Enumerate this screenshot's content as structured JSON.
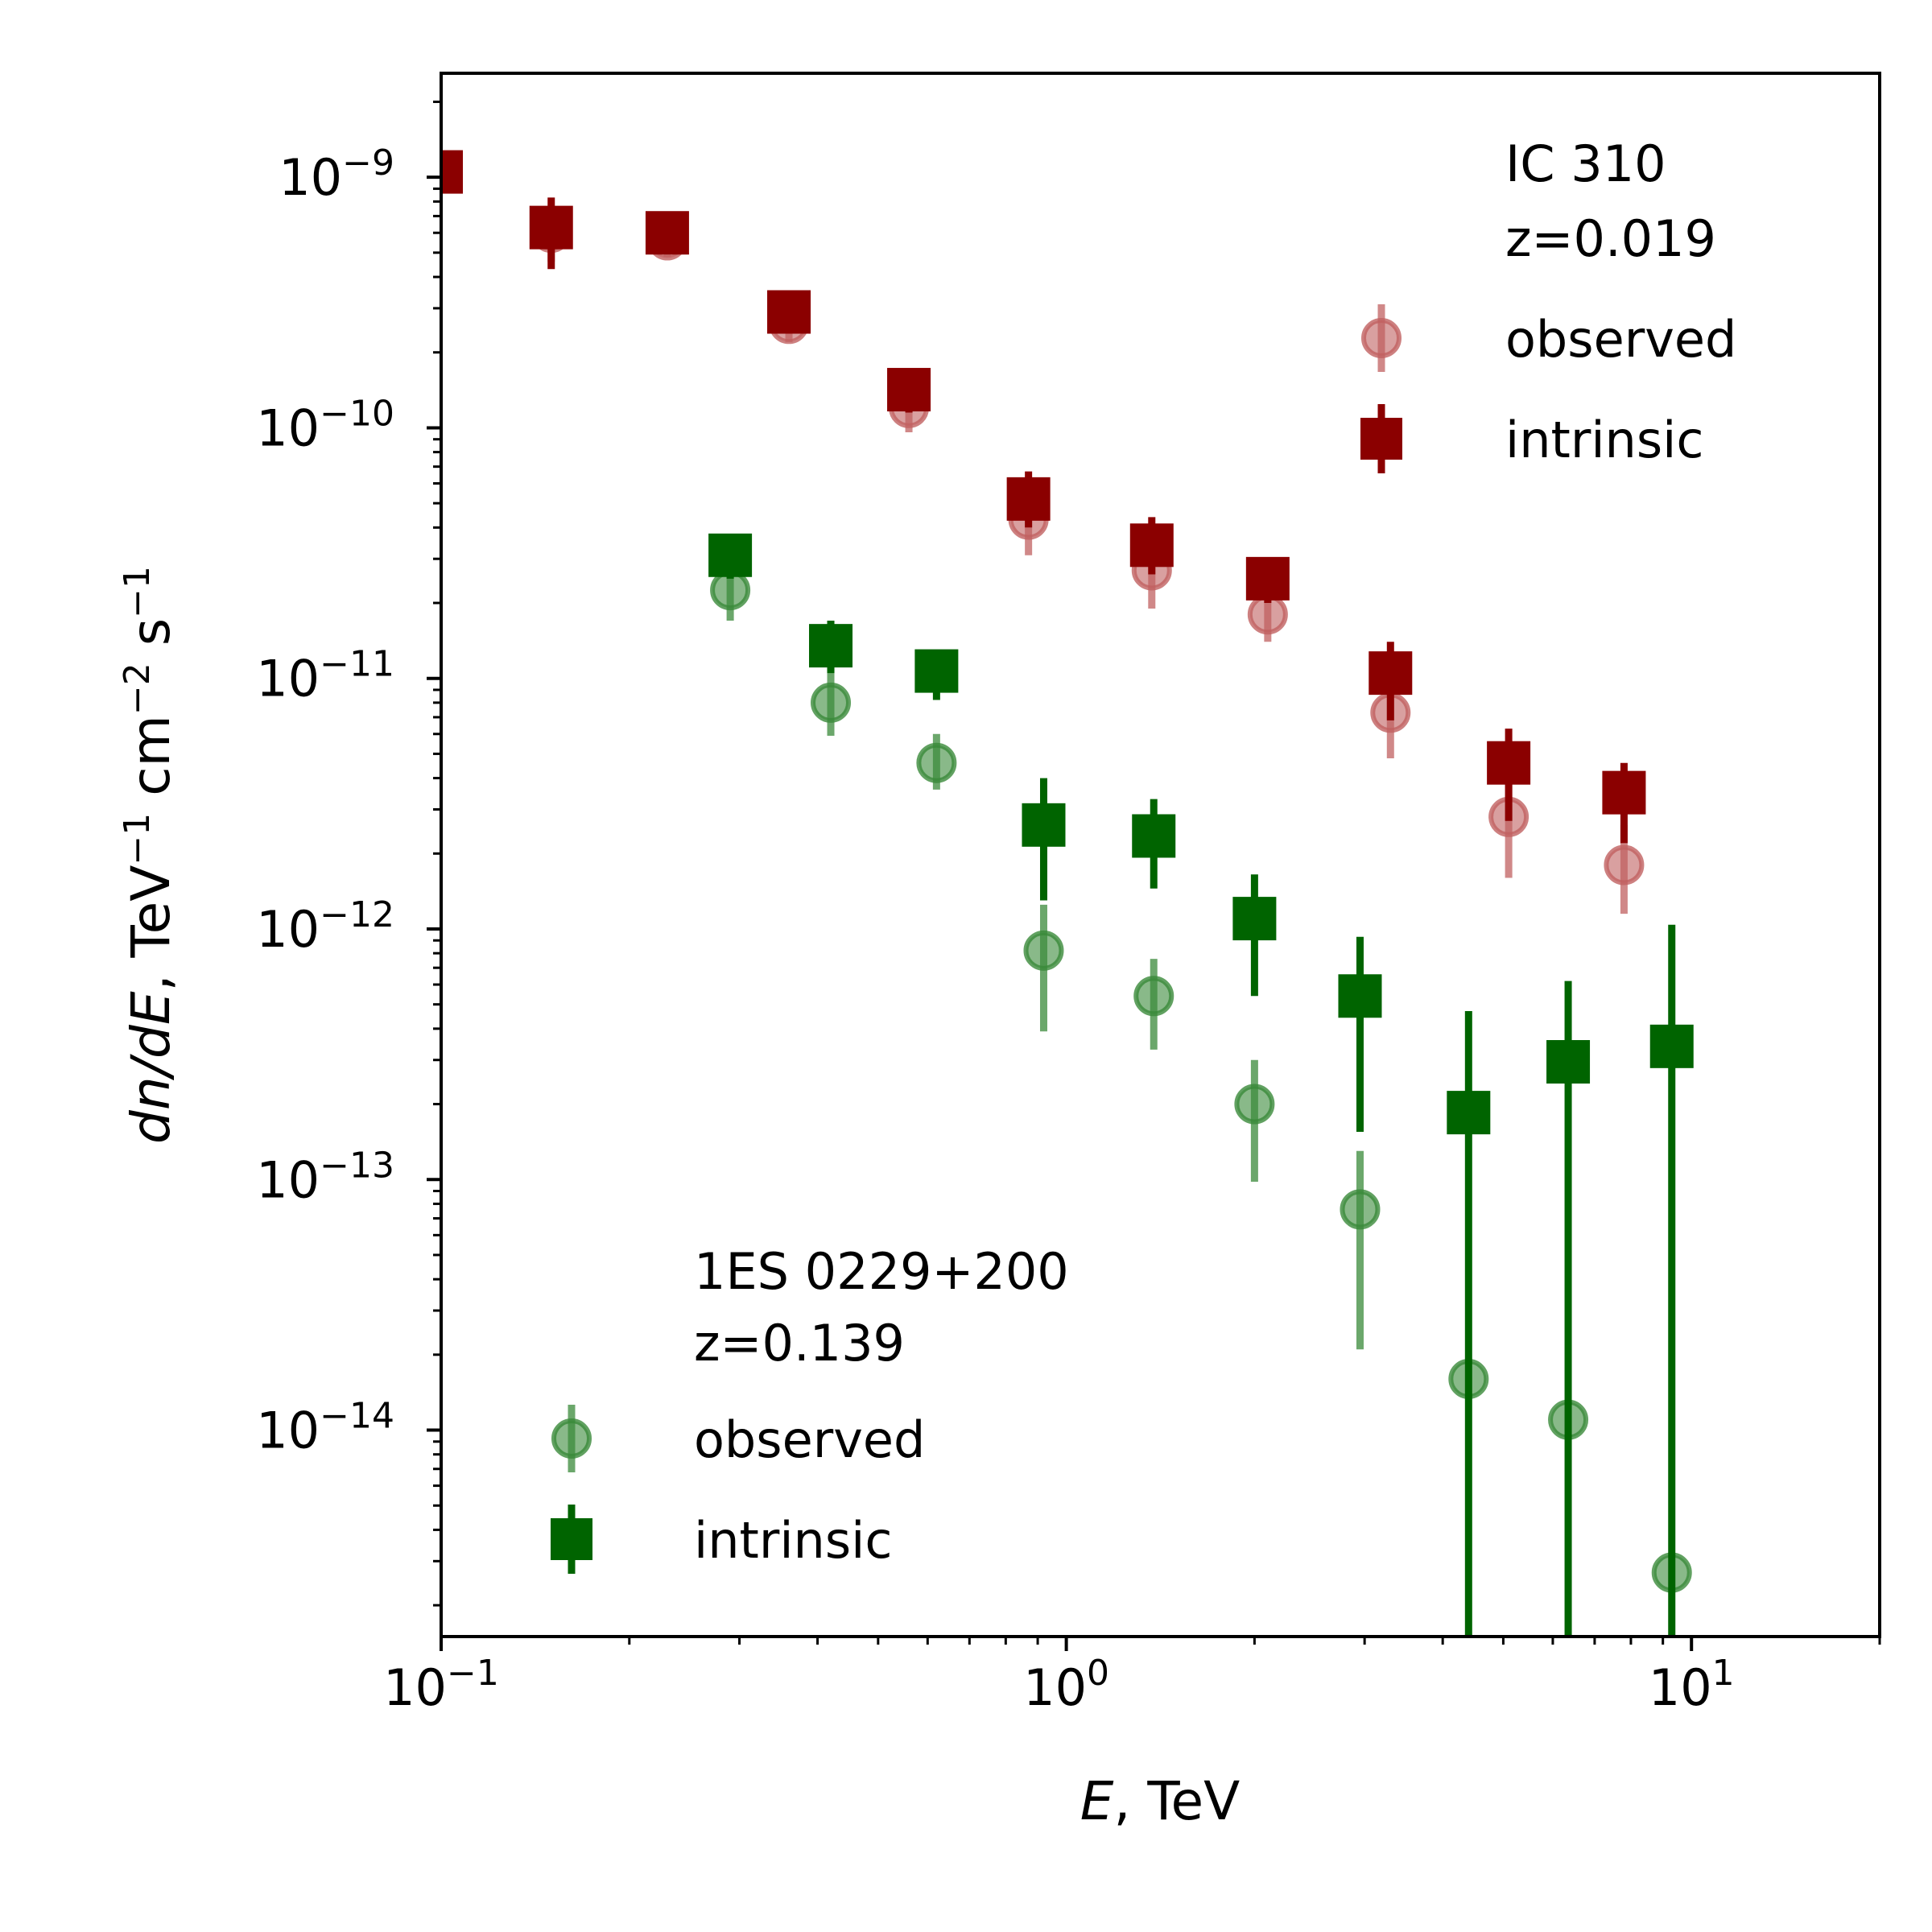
{
  "chart_data": {
    "type": "scatter",
    "xlabel": "E, TeV",
    "xlabel_parts": {
      "var": "E",
      "rest": ", TeV"
    },
    "ylabel_parts": {
      "var": "dn/dE",
      "rest": ", TeV",
      "exp1": "−1",
      "mid": " cm",
      "exp2": "−2",
      "tail": " s",
      "exp3": "−1"
    },
    "xscale": "log",
    "yscale": "log",
    "xlim": [
      0.1,
      20
    ],
    "ylim": [
      1.5e-15,
      2.6e-09
    ],
    "x_ticks": [
      {
        "base": "10",
        "exp": "−1"
      },
      {
        "base": "10",
        "exp": "0"
      },
      {
        "base": "10",
        "exp": "1"
      }
    ],
    "y_ticks": [
      {
        "base": "10",
        "exp": "−9"
      },
      {
        "base": "10",
        "exp": "−10"
      },
      {
        "base": "10",
        "exp": "−11"
      },
      {
        "base": "10",
        "exp": "−12"
      },
      {
        "base": "10",
        "exp": "−13"
      },
      {
        "base": "10",
        "exp": "−14"
      }
    ],
    "colors": {
      "ic_observed": "#c06060",
      "ic_intrinsic": "#8b0000",
      "es_observed": "#3a8a3a",
      "es_intrinsic": "#006400"
    },
    "legends": [
      {
        "placement": "top-right",
        "title": "IC 310",
        "subtitle": "z=0.019",
        "entries": [
          "observed",
          "intrinsic"
        ]
      },
      {
        "placement": "bottom-left",
        "title": "1ES 0229+200",
        "subtitle": "z=0.139",
        "entries": [
          "observed",
          "intrinsic"
        ]
      }
    ],
    "series": [
      {
        "name": "observed",
        "source": "IC 310",
        "marker": "circle",
        "color": "#c06060",
        "points": [
          {
            "x": 0.15,
            "y": 6e-10,
            "lo": 4.6e-10,
            "hi": 7.6e-10
          },
          {
            "x": 0.23,
            "y": 5.6e-10,
            "lo": 4.8e-10,
            "hi": 6.6e-10
          },
          {
            "x": 0.36,
            "y": 2.6e-10,
            "lo": 2.2e-10,
            "hi": 3.1e-10
          },
          {
            "x": 0.56,
            "y": 1.2e-10,
            "lo": 9.6e-11,
            "hi": 1.5e-10
          },
          {
            "x": 0.87,
            "y": 4.3e-11,
            "lo": 3.1e-11,
            "hi": 5.8e-11
          },
          {
            "x": 1.37,
            "y": 2.7e-11,
            "lo": 1.9e-11,
            "hi": 3.8e-11
          },
          {
            "x": 2.1,
            "y": 1.8e-11,
            "lo": 1.4e-11,
            "hi": 2.4e-11
          },
          {
            "x": 3.3,
            "y": 7.3e-12,
            "lo": 4.8e-12,
            "hi": 1.06e-11
          },
          {
            "x": 5.1,
            "y": 2.8e-12,
            "lo": 1.6e-12,
            "hi": 4.2e-12
          },
          {
            "x": 7.8,
            "y": 1.8e-12,
            "lo": 1.15e-12,
            "hi": 2.6e-12
          }
        ]
      },
      {
        "name": "intrinsic",
        "source": "IC 310",
        "marker": "square",
        "color": "#8b0000",
        "points": [
          {
            "x": 0.1,
            "y": 1.05e-09,
            "lo": 9e-10,
            "hi": 1.2e-09
          },
          {
            "x": 0.15,
            "y": 6.3e-10,
            "lo": 4.3e-10,
            "hi": 8.3e-10
          },
          {
            "x": 0.23,
            "y": 6e-10,
            "lo": 5.2e-10,
            "hi": 7e-10
          },
          {
            "x": 0.36,
            "y": 2.9e-10,
            "lo": 2.5e-10,
            "hi": 3.4e-10
          },
          {
            "x": 0.56,
            "y": 1.42e-10,
            "lo": 1.15e-10,
            "hi": 1.7e-10
          },
          {
            "x": 0.87,
            "y": 5.2e-11,
            "lo": 4e-11,
            "hi": 6.7e-11
          },
          {
            "x": 1.37,
            "y": 3.4e-11,
            "lo": 2.6e-11,
            "hi": 4.4e-11
          },
          {
            "x": 2.1,
            "y": 2.5e-11,
            "lo": 2e-11,
            "hi": 3e-11
          },
          {
            "x": 3.3,
            "y": 1.05e-11,
            "lo": 6.8e-12,
            "hi": 1.4e-11
          },
          {
            "x": 5.1,
            "y": 4.6e-12,
            "lo": 2.7e-12,
            "hi": 6.3e-12
          },
          {
            "x": 7.8,
            "y": 3.5e-12,
            "lo": 2.2e-12,
            "hi": 4.6e-12
          }
        ]
      },
      {
        "name": "observed",
        "source": "1ES 0229+200",
        "marker": "circle",
        "color": "#3a8a3a",
        "points": [
          {
            "x": 0.29,
            "y": 2.25e-11,
            "lo": 1.7e-11,
            "hi": 3e-11
          },
          {
            "x": 0.42,
            "y": 8e-12,
            "lo": 5.9e-12,
            "hi": 1.1e-11
          },
          {
            "x": 0.62,
            "y": 4.6e-12,
            "lo": 3.6e-12,
            "hi": 6e-12
          },
          {
            "x": 0.92,
            "y": 8.2e-13,
            "lo": 3.9e-13,
            "hi": 1.25e-12
          },
          {
            "x": 1.38,
            "y": 5.4e-13,
            "lo": 3.3e-13,
            "hi": 7.6e-13
          },
          {
            "x": 2.0,
            "y": 2e-13,
            "lo": 9.8e-14,
            "hi": 3e-13
          },
          {
            "x": 2.95,
            "y": 7.6e-14,
            "lo": 2.1e-14,
            "hi": 1.3e-13
          },
          {
            "x": 4.4,
            "y": 1.6e-14,
            "lo": 1.6e-14,
            "hi": 1.6e-14
          },
          {
            "x": 6.35,
            "y": 1.1e-14,
            "lo": 1.1e-14,
            "hi": 1.1e-14
          },
          {
            "x": 9.3,
            "y": 2.7e-15,
            "lo": 2.7e-15,
            "hi": 2.7e-15
          }
        ]
      },
      {
        "name": "intrinsic",
        "source": "1ES 0229+200",
        "marker": "square",
        "color": "#006400",
        "points": [
          {
            "x": 0.29,
            "y": 3.1e-11,
            "lo": 2.5e-11,
            "hi": 3.7e-11
          },
          {
            "x": 0.42,
            "y": 1.35e-11,
            "lo": 1.05e-11,
            "hi": 1.7e-11
          },
          {
            "x": 0.62,
            "y": 1.07e-11,
            "lo": 8.2e-12,
            "hi": 1.25e-11
          },
          {
            "x": 0.92,
            "y": 2.6e-12,
            "lo": 1.3e-12,
            "hi": 4e-12
          },
          {
            "x": 1.38,
            "y": 2.35e-12,
            "lo": 1.45e-12,
            "hi": 3.3e-12
          },
          {
            "x": 2.0,
            "y": 1.1e-12,
            "lo": 5.4e-13,
            "hi": 1.65e-12
          },
          {
            "x": 2.95,
            "y": 5.4e-13,
            "lo": 1.55e-13,
            "hi": 9.3e-13
          },
          {
            "x": 4.4,
            "y": 1.85e-13,
            "lo": 1.5e-15,
            "hi": 4.7e-13
          },
          {
            "x": 6.35,
            "y": 2.95e-13,
            "lo": 1.5e-15,
            "hi": 6.2e-13
          },
          {
            "x": 9.3,
            "y": 3.4e-13,
            "lo": 1.5e-15,
            "hi": 1.04e-12
          }
        ]
      }
    ]
  }
}
